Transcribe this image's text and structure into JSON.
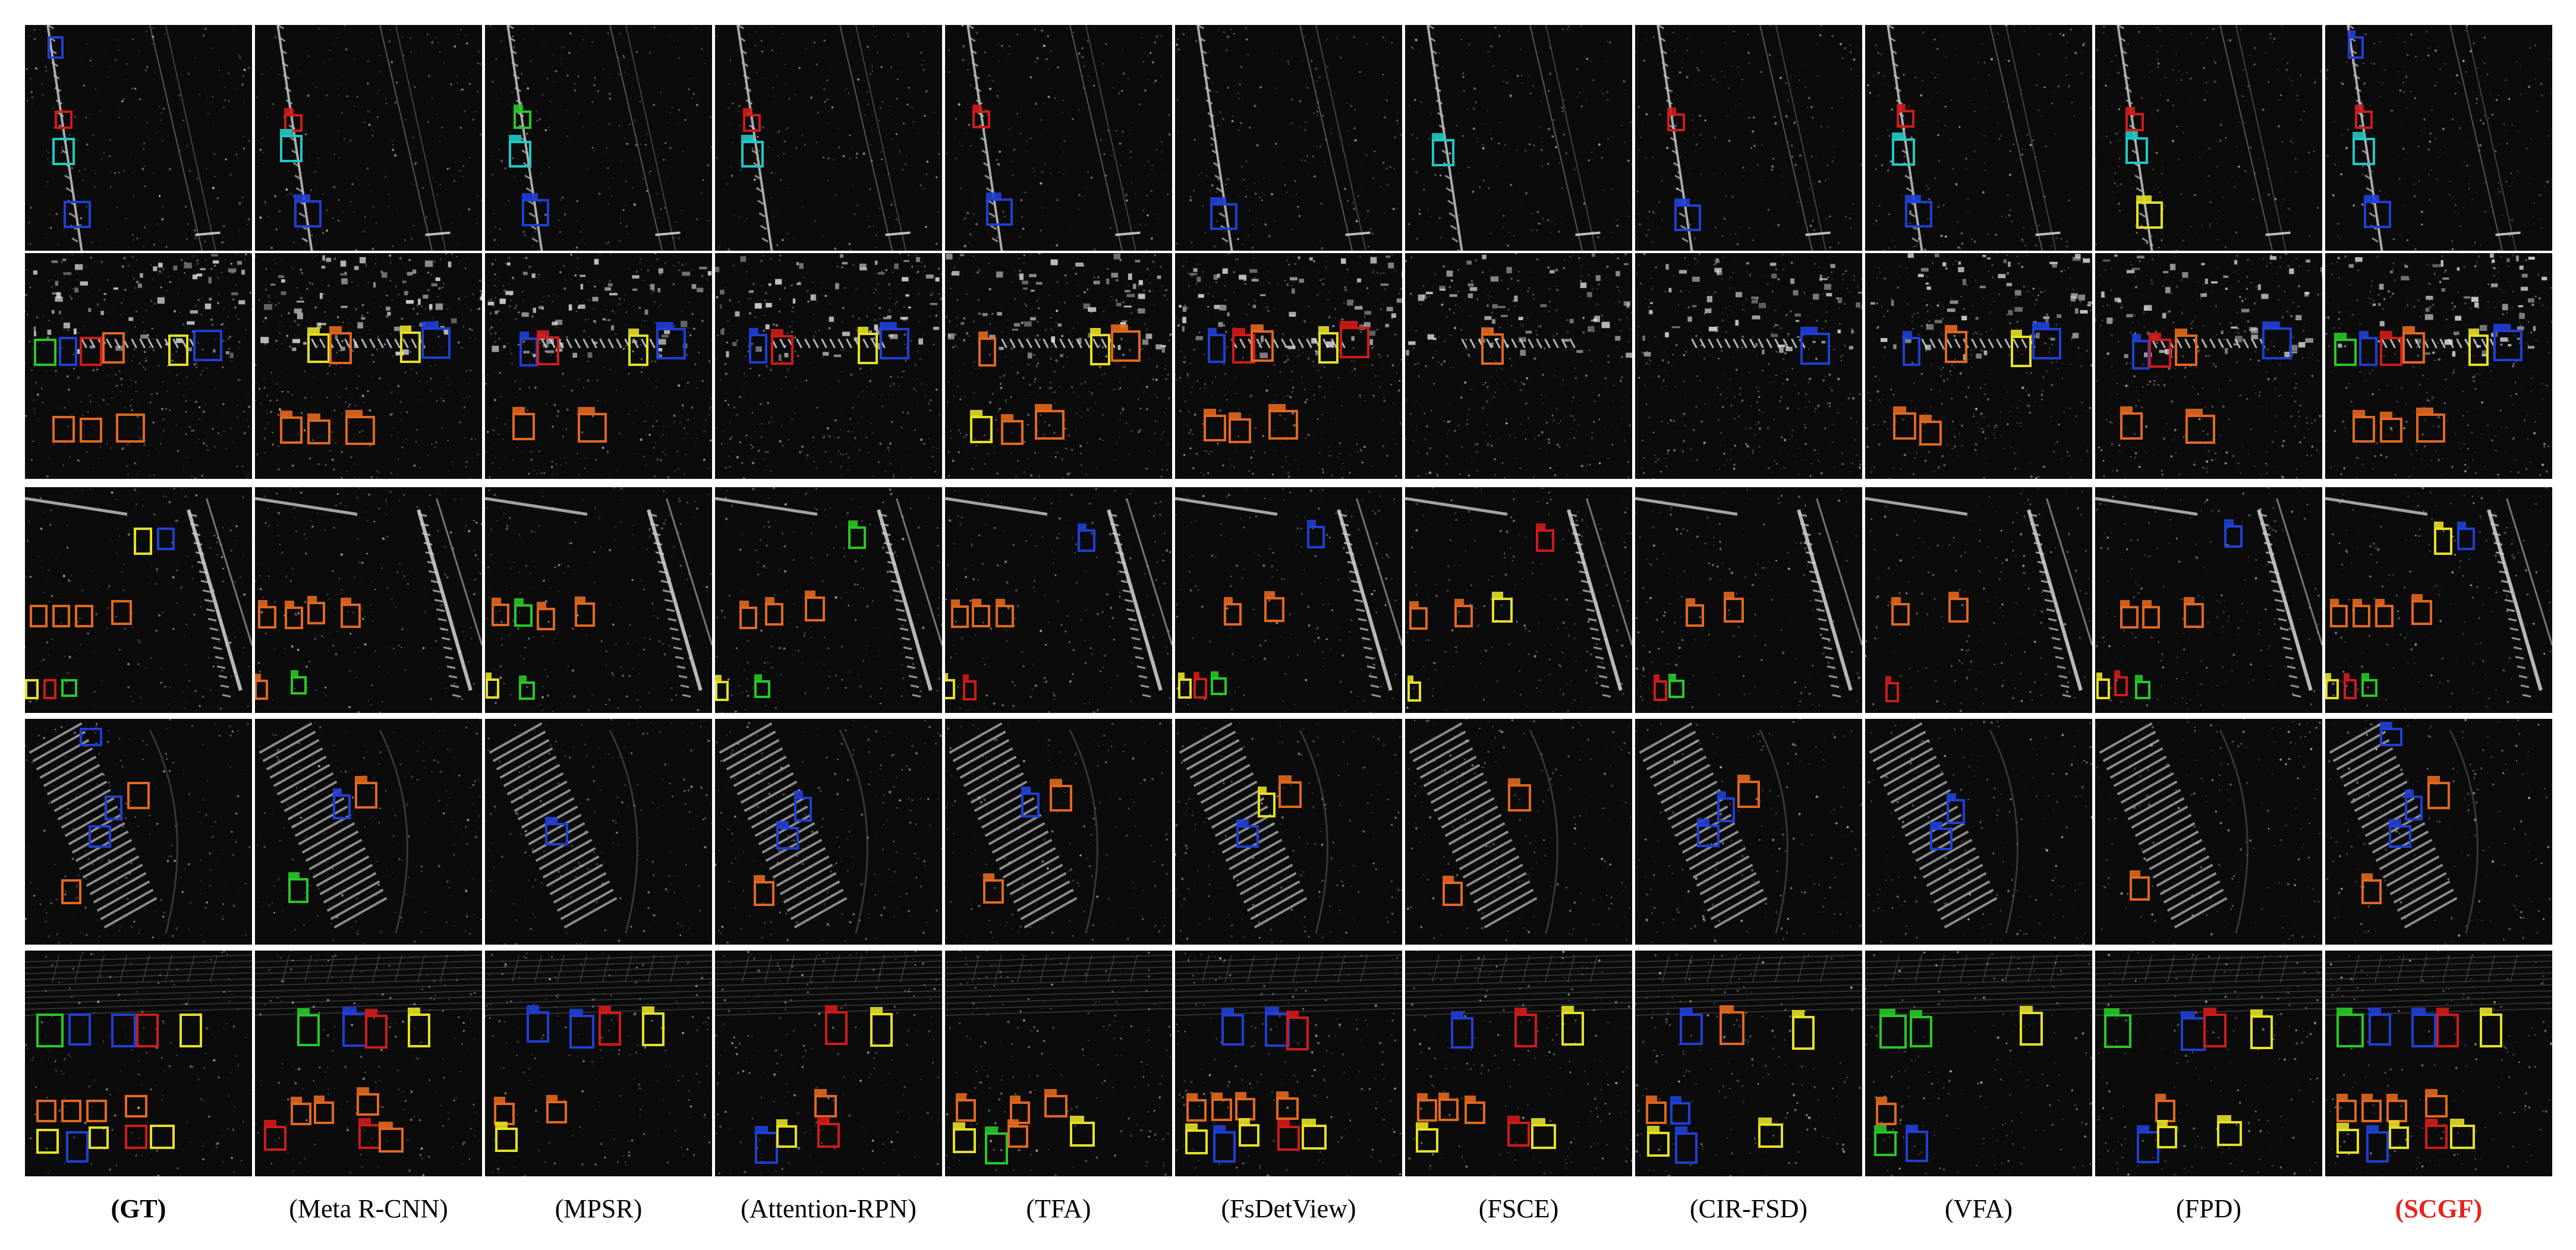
{
  "figure": {
    "methods": [
      {
        "label": "(GT)",
        "style": "bold"
      },
      {
        "label": "(Meta R-CNN)",
        "style": "normal"
      },
      {
        "label": "(MPSR)",
        "style": "normal"
      },
      {
        "label": "(Attention-RPN)",
        "style": "normal"
      },
      {
        "label": "(TFA)",
        "style": "normal"
      },
      {
        "label": "(FsDetView)",
        "style": "normal"
      },
      {
        "label": "(FSCE)",
        "style": "normal"
      },
      {
        "label": "(CIR-FSD)",
        "style": "normal"
      },
      {
        "label": "(VFA)",
        "style": "normal"
      },
      {
        "label": "(FPD)",
        "style": "normal"
      },
      {
        "label": "(SCGF)",
        "style": "highlight"
      }
    ],
    "rows": [
      {
        "scene": "sar-runway-diagonal",
        "note_icon": "sar-scene-1"
      },
      {
        "scene": "sar-dense-urban",
        "note_icon": "sar-scene-2"
      },
      {
        "scene": "sar-harbor-bright-edge",
        "note_icon": "sar-scene-3"
      },
      {
        "scene": "sar-curved-coast",
        "note_icon": "sar-scene-4"
      },
      {
        "scene": "sar-parking-grid",
        "note_icon": "sar-scene-5"
      }
    ],
    "box_colors": {
      "blue": "#1f3fd6",
      "red": "#d11a1a",
      "cyan": "#1fc9c4",
      "orange": "#e3671e",
      "yellow": "#e6e024",
      "green": "#27c925"
    },
    "highlight_color": "#e8231f"
  }
}
